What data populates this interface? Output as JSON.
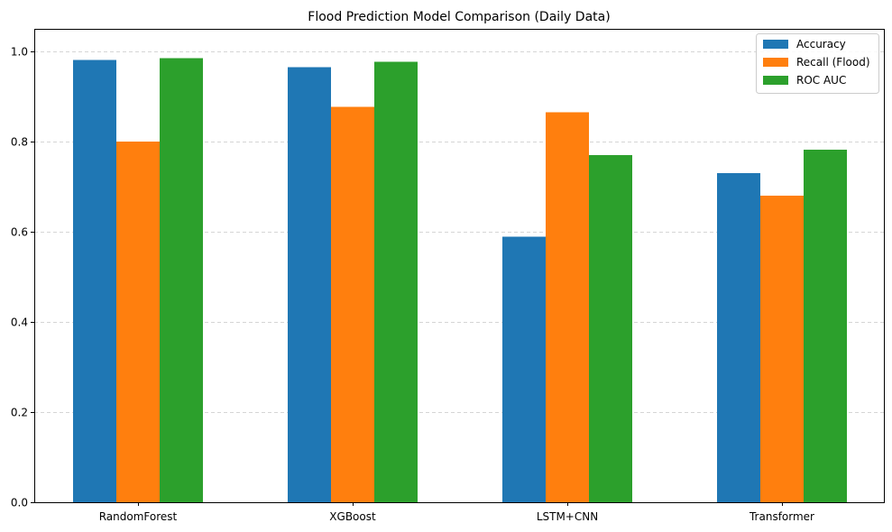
{
  "chart_data": {
    "type": "bar",
    "title": "Flood Prediction Model Comparison (Daily Data)",
    "xlabel": "",
    "ylabel": "",
    "categories": [
      "RandomForest",
      "XGBoost",
      "LSTM+CNN",
      "Transformer"
    ],
    "series": [
      {
        "name": "Accuracy",
        "color": "#1f77b4",
        "values": [
          0.981,
          0.965,
          0.589,
          0.73
        ]
      },
      {
        "name": "Recall (Flood)",
        "color": "#ff7f0e",
        "values": [
          0.8,
          0.877,
          0.865,
          0.68
        ]
      },
      {
        "name": "ROC AUC",
        "color": "#2ca02c",
        "values": [
          0.985,
          0.977,
          0.77,
          0.782
        ]
      }
    ],
    "ylim": [
      0,
      1.05
    ],
    "yticks": [
      "0.0",
      "0.2",
      "0.4",
      "0.6",
      "0.8",
      "1.0"
    ],
    "grid": "horizontal dashed",
    "legend_position": "top-right"
  }
}
